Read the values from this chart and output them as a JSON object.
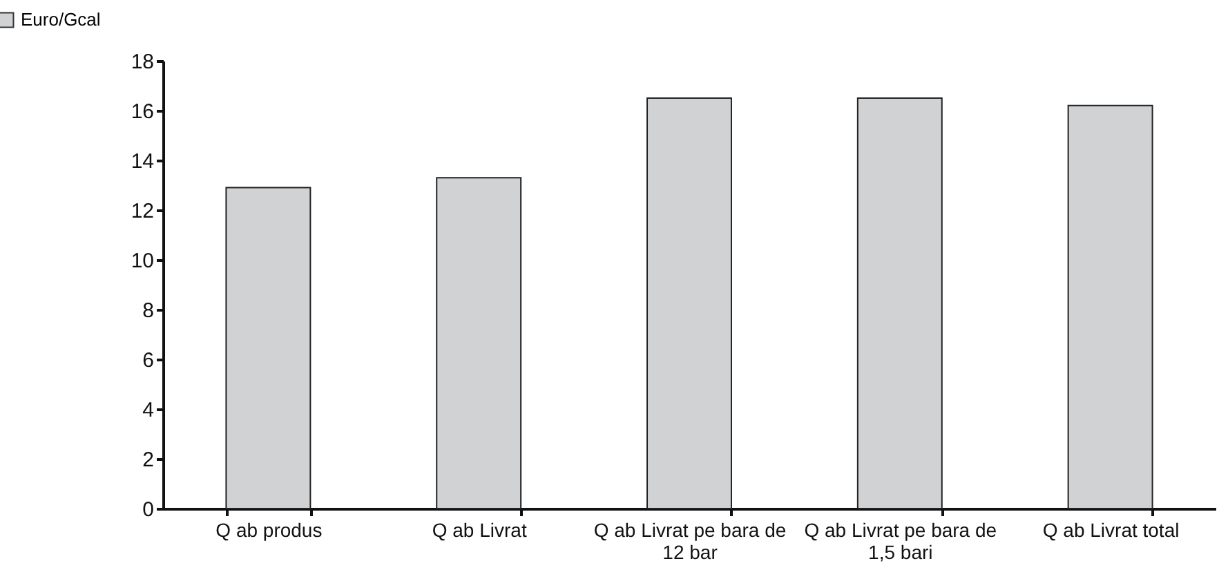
{
  "chart_data": {
    "type": "bar",
    "categories": [
      "Q ab produs",
      "Q ab Livrat",
      "Q ab Livrat pe bara de 12 bar",
      "Q ab Livrat pe bara de 1,5 bari",
      "Q ab Livrat total"
    ],
    "series": [
      {
        "name": "Euro/Gcal",
        "color": "#d1d2d4",
        "values": [
          12.9,
          13.3,
          16.5,
          16.5,
          16.2
        ]
      }
    ],
    "ylim": [
      0,
      18
    ],
    "yticks": [
      0,
      2,
      4,
      6,
      8,
      10,
      12,
      14,
      16,
      18
    ],
    "grid": false,
    "legend": "top left"
  }
}
